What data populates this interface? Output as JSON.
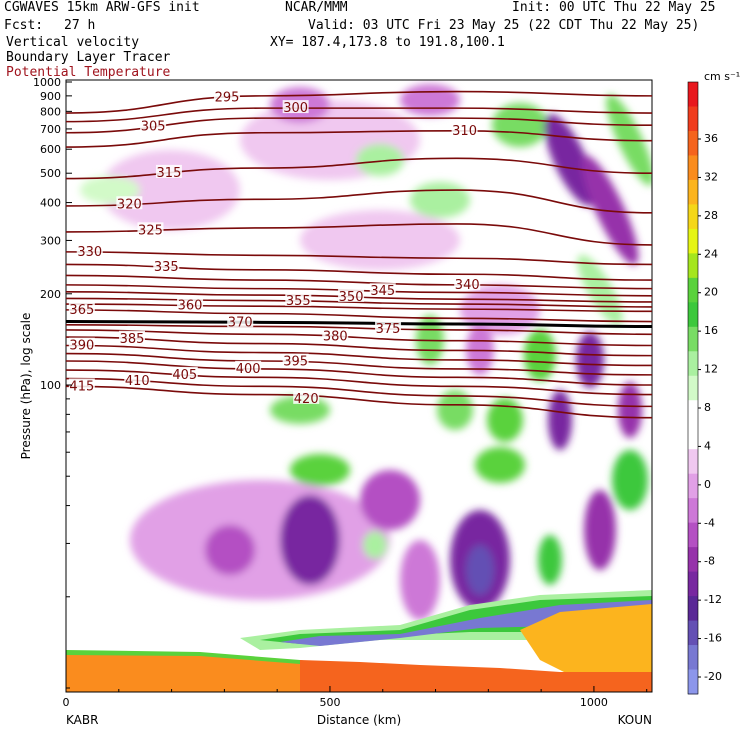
{
  "header": {
    "model": "CGWAVES 15km ARW-GFS init",
    "org": "NCAR/MMM",
    "init": "Init: 00 UTC Thu 22 May 25",
    "fcst_label": "Fcst:",
    "fcst_value": "27 h",
    "valid": "Valid: 03 UTC Fri 23 May 25 (22 CDT Thu 22 May 25)",
    "field1": "Vertical velocity",
    "field2": "Boundary Layer Tracer",
    "field3": "Potential Temperature",
    "xy": "XY= 187.4,173.8 to 191.8,100.1"
  },
  "chart_data": {
    "type": "heatmap",
    "xlabel": "Distance (km)",
    "ylabel": "Pressure (hPa), log scale",
    "x_ticks": [
      0,
      500,
      1000
    ],
    "xlim": [
      0,
      1110
    ],
    "y_scale": "log",
    "y_ticks": [
      100,
      200,
      300,
      400,
      500,
      600,
      700,
      800,
      900,
      1000
    ],
    "ylim": [
      1000,
      10
    ],
    "x_end_labels": {
      "left": "KABR",
      "right": "KOUN"
    },
    "colorbar": {
      "unit": "cm s⁻¹",
      "ticks": [
        36,
        32,
        28,
        24,
        20,
        16,
        12,
        8,
        4,
        0,
        -4,
        -8,
        -12,
        -16,
        -20
      ],
      "colors": [
        "#e8181e",
        "#f03c1e",
        "#f5641e",
        "#fa8c1e",
        "#fcb41e",
        "#f5d719",
        "#e6f514",
        "#a5e61e",
        "#5ad23c",
        "#3cc83c",
        "#78dc64",
        "#aaf0a0",
        "#d2fac8",
        "#ffffff",
        "#ffffff",
        "#f0c8f0",
        "#e1a0e6",
        "#cd78d7",
        "#b450c3",
        "#9632aa",
        "#7828a0",
        "#5a2896",
        "#6450b4",
        "#7878d2",
        "#8c96eb"
      ]
    },
    "theta_contours": [
      {
        "label": "415",
        "y": [
          99,
          93,
          86,
          78
        ]
      },
      {
        "label": "410",
        "y": [
          105,
          99,
          92,
          85
        ]
      },
      {
        "label": "405",
        "y": [
          112,
          106,
          99,
          93
        ]
      },
      {
        "label": "400",
        "y": [
          120,
          113,
          106,
          100
        ]
      },
      {
        "label": "395",
        "y": [
          127,
          120,
          113,
          108
        ]
      },
      {
        "label": "390",
        "y": [
          135,
          128,
          121,
          116
        ]
      },
      {
        "label": "385",
        "y": [
          144,
          137,
          130,
          125
        ]
      },
      {
        "label": "380",
        "y": [
          152,
          147,
          140,
          135
        ]
      },
      {
        "label": "375",
        "y": [
          158,
          156,
          152,
          147
        ]
      },
      {
        "label": "370",
        "y": [
          162,
          161,
          159,
          156
        ]
      },
      {
        "label": "365",
        "y": [
          177,
          172,
          166,
          162
        ]
      },
      {
        "label": "360",
        "y": [
          185,
          182,
          178,
          175
        ]
      },
      {
        "label": "355",
        "y": [
          193,
          190,
          185,
          181
        ]
      },
      {
        "label": "350",
        "y": [
          203,
          198,
          192,
          188
        ]
      },
      {
        "label": "345",
        "y": [
          214,
          208,
          202,
          197
        ]
      },
      {
        "label": "340",
        "y": [
          230,
          222,
          214,
          208
        ]
      },
      {
        "label": "335",
        "y": [
          250,
          240,
          232,
          222
        ]
      },
      {
        "label": "330",
        "y": [
          275,
          268,
          262,
          250
        ]
      },
      {
        "label": "325",
        "y": [
          320,
          330,
          340,
          290
        ]
      },
      {
        "label": "320",
        "y": [
          390,
          410,
          440,
          370
        ]
      },
      {
        "label": "315",
        "y": [
          480,
          520,
          560,
          500
        ]
      },
      {
        "label": "310",
        "y": [
          610,
          680,
          690,
          640
        ]
      },
      {
        "label": "305",
        "y": [
          680,
          760,
          760,
          720
        ]
      },
      {
        "label": "300",
        "y": [
          740,
          820,
          820,
          790
        ]
      },
      {
        "label": "295",
        "y": [
          790,
          900,
          930,
          900
        ]
      }
    ],
    "contour_label_positions": [
      {
        "label": "415",
        "x": 30
      },
      {
        "label": "410",
        "x": 135
      },
      {
        "label": "405",
        "x": 225
      },
      {
        "label": "420",
        "x": 455
      },
      {
        "label": "400",
        "x": 345
      },
      {
        "label": "395",
        "x": 435
      },
      {
        "label": "390",
        "x": 30
      },
      {
        "label": "385",
        "x": 125
      },
      {
        "label": "380",
        "x": 510
      },
      {
        "label": "375",
        "x": 610
      },
      {
        "label": "370",
        "x": 330
      },
      {
        "label": "365",
        "x": 30
      },
      {
        "label": "360",
        "x": 235
      },
      {
        "label": "355",
        "x": 440
      },
      {
        "label": "350",
        "x": 540
      },
      {
        "label": "345",
        "x": 600
      },
      {
        "label": "340",
        "x": 760
      },
      {
        "label": "335",
        "x": 190
      },
      {
        "label": "330",
        "x": 45
      },
      {
        "label": "325",
        "x": 160
      },
      {
        "label": "320",
        "x": 120
      },
      {
        "label": "315",
        "x": 195
      },
      {
        "label": "310",
        "x": 755
      },
      {
        "label": "305",
        "x": 165
      },
      {
        "label": "300",
        "x": 435
      },
      {
        "label": "295",
        "x": 305
      }
    ]
  }
}
